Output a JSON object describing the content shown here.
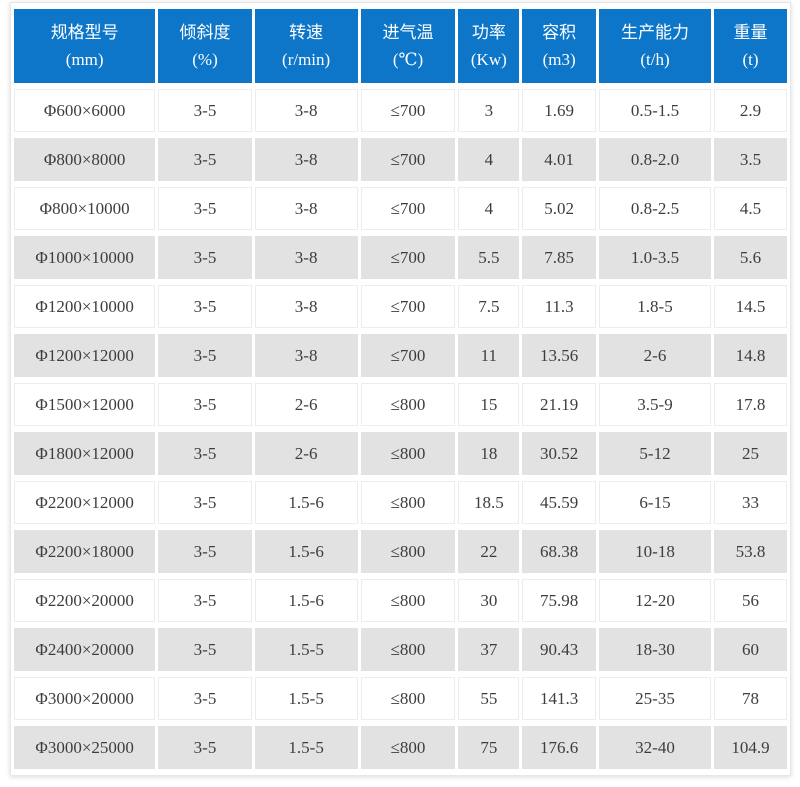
{
  "chart_data": {
    "type": "table",
    "title": "",
    "columns": [
      {
        "key": "spec-model",
        "name": "规格型号",
        "unit": "(mm)"
      },
      {
        "key": "incline",
        "name": "倾斜度",
        "unit": "(%)"
      },
      {
        "key": "rotation-speed",
        "name": "转速",
        "unit": "(r/min)"
      },
      {
        "key": "inlet-air-temp",
        "name": "进气温",
        "unit": "(℃)"
      },
      {
        "key": "power",
        "name": "功率",
        "unit": "(Kw)"
      },
      {
        "key": "volume",
        "name": "容积",
        "unit": "(m3)"
      },
      {
        "key": "production-capacity",
        "name": "生产能力",
        "unit": "(t/h)"
      },
      {
        "key": "weight",
        "name": "重量",
        "unit": "(t)"
      }
    ],
    "rows": [
      [
        "Φ600×6000",
        "3-5",
        "3-8",
        "≤700",
        "3",
        "1.69",
        "0.5-1.5",
        "2.9"
      ],
      [
        "Φ800×8000",
        "3-5",
        "3-8",
        "≤700",
        "4",
        "4.01",
        "0.8-2.0",
        "3.5"
      ],
      [
        "Φ800×10000",
        "3-5",
        "3-8",
        "≤700",
        "4",
        "5.02",
        "0.8-2.5",
        "4.5"
      ],
      [
        "Φ1000×10000",
        "3-5",
        "3-8",
        "≤700",
        "5.5",
        "7.85",
        "1.0-3.5",
        "5.6"
      ],
      [
        "Φ1200×10000",
        "3-5",
        "3-8",
        "≤700",
        "7.5",
        "11.3",
        "1.8-5",
        "14.5"
      ],
      [
        "Φ1200×12000",
        "3-5",
        "3-8",
        "≤700",
        "11",
        "13.56",
        "2-6",
        "14.8"
      ],
      [
        "Φ1500×12000",
        "3-5",
        "2-6",
        "≤800",
        "15",
        "21.19",
        "3.5-9",
        "17.8"
      ],
      [
        "Φ1800×12000",
        "3-5",
        "2-6",
        "≤800",
        "18",
        "30.52",
        "5-12",
        "25"
      ],
      [
        "Φ2200×12000",
        "3-5",
        "1.5-6",
        "≤800",
        "18.5",
        "45.59",
        "6-15",
        "33"
      ],
      [
        "Φ2200×18000",
        "3-5",
        "1.5-6",
        "≤800",
        "22",
        "68.38",
        "10-18",
        "53.8"
      ],
      [
        "Φ2200×20000",
        "3-5",
        "1.5-6",
        "≤800",
        "30",
        "75.98",
        "12-20",
        "56"
      ],
      [
        "Φ2400×20000",
        "3-5",
        "1.5-5",
        "≤800",
        "37",
        "90.43",
        "18-30",
        "60"
      ],
      [
        "Φ3000×20000",
        "3-5",
        "1.5-5",
        "≤800",
        "55",
        "141.3",
        "25-35",
        "78"
      ],
      [
        "Φ3000×25000",
        "3-5",
        "1.5-5",
        "≤800",
        "75",
        "176.6",
        "32-40",
        "104.9"
      ]
    ],
    "layout": {
      "column_width_percents": [
        18.8,
        12.4,
        13.7,
        12.6,
        8.1,
        9.8,
        14.9,
        9.7
      ],
      "row_striping": "white-gray-alternating",
      "grid": "light-separators"
    }
  },
  "colors": {
    "header_bg": "#0d76c9",
    "header_text": "#ffffff",
    "row_bg": "#ffffff",
    "row_alt_bg": "#e2e2e2",
    "body_text": "#3d3d3d",
    "grid_line": "#ededed",
    "card_border": "#e7e7e7"
  }
}
